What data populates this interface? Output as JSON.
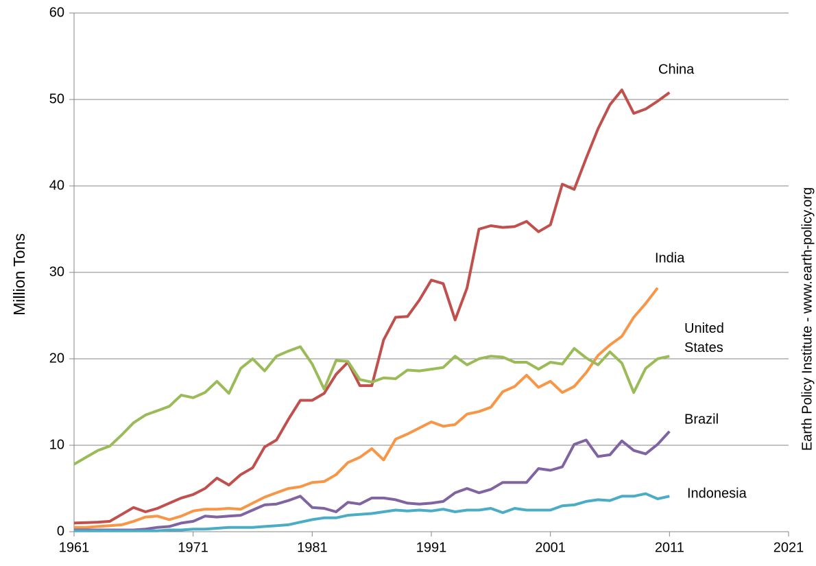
{
  "chart_data": {
    "type": "line",
    "y_label": "Million Tons",
    "source": "Earth Policy Institute - www.earth-policy.org",
    "x": [
      1961,
      1962,
      1963,
      1964,
      1965,
      1966,
      1967,
      1968,
      1969,
      1970,
      1971,
      1972,
      1973,
      1974,
      1975,
      1976,
      1977,
      1978,
      1979,
      1980,
      1981,
      1982,
      1983,
      1984,
      1985,
      1986,
      1987,
      1988,
      1989,
      1990,
      1991,
      1992,
      1993,
      1994,
      1995,
      1996,
      1997,
      1998,
      1999,
      2000,
      2001,
      2002,
      2003,
      2004,
      2005,
      2006,
      2007,
      2008,
      2009,
      2010,
      2011
    ],
    "series": [
      {
        "name": "China",
        "color": "#c0504d",
        "values": [
          1.0,
          1.05,
          1.1,
          1.2,
          2.0,
          2.8,
          2.3,
          2.7,
          3.3,
          3.9,
          4.3,
          5.0,
          6.2,
          5.4,
          6.6,
          7.4,
          9.8,
          10.6,
          13.0,
          15.2,
          15.2,
          16.0,
          18.2,
          19.6,
          16.9,
          16.9,
          22.2,
          24.8,
          24.9,
          26.8,
          29.1,
          28.7,
          24.5,
          28.2,
          35.0,
          35.4,
          35.2,
          35.3,
          35.9,
          34.7,
          35.5,
          40.2,
          39.6,
          43.2,
          46.6,
          49.4,
          51.1,
          48.4,
          48.9,
          49.8,
          50.8
        ]
      },
      {
        "name": "India",
        "color": "#f79646",
        "values": [
          0.5,
          0.5,
          0.6,
          0.7,
          0.8,
          1.2,
          1.7,
          1.8,
          1.4,
          1.8,
          2.4,
          2.6,
          2.6,
          2.7,
          2.6,
          3.3,
          4.0,
          4.5,
          5.0,
          5.2,
          5.7,
          5.8,
          6.6,
          8.0,
          8.6,
          9.6,
          8.3,
          10.7,
          11.3,
          12.0,
          12.7,
          12.2,
          12.4,
          13.6,
          13.9,
          14.4,
          16.2,
          16.8,
          18.1,
          16.7,
          17.4,
          16.1,
          16.8,
          18.4,
          20.4,
          21.6,
          22.6,
          24.8,
          26.4,
          28.2,
          null
        ]
      },
      {
        "name": "United States",
        "color": "#9bbb59",
        "values": [
          7.8,
          8.6,
          9.4,
          9.9,
          11.2,
          12.6,
          13.5,
          14.0,
          14.5,
          15.8,
          15.5,
          16.1,
          17.4,
          16.0,
          18.9,
          20.0,
          18.6,
          20.3,
          20.9,
          21.4,
          19.4,
          16.5,
          19.8,
          19.7,
          17.6,
          17.3,
          17.8,
          17.7,
          18.7,
          18.6,
          18.8,
          19.0,
          20.3,
          19.3,
          20.0,
          20.3,
          20.2,
          19.6,
          19.6,
          18.8,
          19.6,
          19.4,
          21.2,
          20.1,
          19.3,
          20.8,
          19.5,
          16.1,
          18.9,
          20.0,
          20.3
        ]
      },
      {
        "name": "Brazil",
        "color": "#8064a2",
        "values": [
          0.2,
          0.2,
          0.2,
          0.2,
          0.2,
          0.2,
          0.3,
          0.5,
          0.6,
          1.0,
          1.2,
          1.8,
          1.7,
          1.8,
          1.9,
          2.5,
          3.1,
          3.2,
          3.6,
          4.1,
          2.8,
          2.7,
          2.3,
          3.4,
          3.2,
          3.9,
          3.9,
          3.7,
          3.3,
          3.2,
          3.3,
          3.5,
          4.5,
          5.0,
          4.5,
          4.9,
          5.7,
          5.7,
          5.7,
          7.3,
          7.1,
          7.5,
          10.1,
          10.6,
          8.7,
          8.9,
          10.5,
          9.4,
          9.0,
          10.1,
          11.6
        ]
      },
      {
        "name": "Indonesia",
        "color": "#4bacc6",
        "values": [
          0.1,
          0.1,
          0.1,
          0.1,
          0.1,
          0.1,
          0.1,
          0.1,
          0.2,
          0.2,
          0.3,
          0.3,
          0.4,
          0.5,
          0.5,
          0.5,
          0.6,
          0.7,
          0.8,
          1.1,
          1.4,
          1.6,
          1.6,
          1.9,
          2.0,
          2.1,
          2.3,
          2.5,
          2.4,
          2.5,
          2.4,
          2.6,
          2.3,
          2.5,
          2.5,
          2.7,
          2.2,
          2.7,
          2.5,
          2.5,
          2.5,
          3.0,
          3.1,
          3.5,
          3.7,
          3.6,
          4.1,
          4.1,
          4.4,
          3.8,
          4.1
        ]
      }
    ],
    "xlim": [
      1961,
      2021
    ],
    "xticks": [
      1961,
      1971,
      1981,
      1991,
      2001,
      2011,
      2021
    ],
    "ylim": [
      0,
      60
    ],
    "yticks": [
      0,
      10,
      20,
      30,
      40,
      50,
      60
    ],
    "grid": true
  }
}
